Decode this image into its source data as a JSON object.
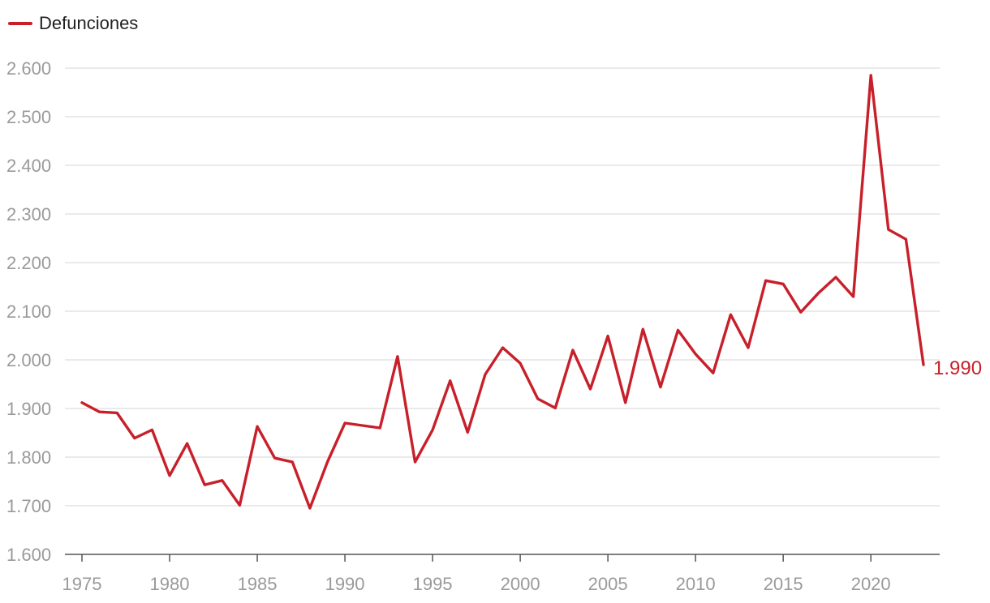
{
  "chart_data": {
    "type": "line",
    "legend": {
      "position": "top-left"
    },
    "grid": true,
    "xlim": [
      1975,
      2023
    ],
    "ylim": [
      1600,
      2600
    ],
    "yticks": [
      1600,
      1700,
      1800,
      1900,
      2000,
      2100,
      2200,
      2300,
      2400,
      2500,
      2600
    ],
    "ytick_labels": [
      "1.600",
      "1.700",
      "1.800",
      "1.900",
      "2.000",
      "2.100",
      "2.200",
      "2.300",
      "2.400",
      "2.500",
      "2.600"
    ],
    "xticks": [
      1975,
      1980,
      1985,
      1990,
      1995,
      2000,
      2005,
      2010,
      2015,
      2020
    ],
    "xtick_labels": [
      "1975",
      "1980",
      "1985",
      "1990",
      "1995",
      "2000",
      "2005",
      "2010",
      "2015",
      "2020"
    ],
    "x": [
      1975,
      1976,
      1977,
      1978,
      1979,
      1980,
      1981,
      1982,
      1983,
      1984,
      1985,
      1986,
      1987,
      1988,
      1989,
      1990,
      1991,
      1992,
      1993,
      1994,
      1995,
      1996,
      1997,
      1998,
      1999,
      2000,
      2001,
      2002,
      2003,
      2004,
      2005,
      2006,
      2007,
      2008,
      2009,
      2010,
      2011,
      2012,
      2013,
      2014,
      2015,
      2016,
      2017,
      2018,
      2019,
      2020,
      2021,
      2022,
      2023
    ],
    "series": [
      {
        "name": "Defunciones",
        "color": "#c8202a",
        "values": [
          1912,
          1893,
          1891,
          1839,
          1856,
          1762,
          1828,
          1743,
          1752,
          1701,
          1863,
          1798,
          1790,
          1695,
          1790,
          1870,
          1865,
          1860,
          2007,
          1790,
          1856,
          1957,
          1851,
          1970,
          2025,
          1993,
          1920,
          1901,
          2020,
          1940,
          2049,
          1912,
          2063,
          1944,
          2061,
          2012,
          1973,
          2093,
          2025,
          2163,
          2156,
          2098,
          2137,
          2170,
          2130,
          2585,
          2268,
          2248,
          1990
        ]
      }
    ],
    "end_label": "1.990"
  }
}
